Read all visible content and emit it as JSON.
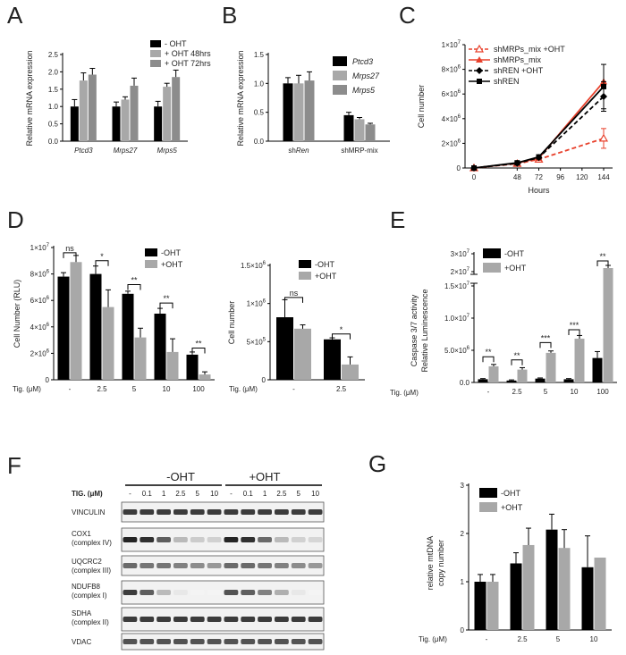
{
  "panels": {
    "A": "A",
    "B": "B",
    "C": "C",
    "D": "D",
    "E": "E",
    "F": "F",
    "G": "G"
  },
  "colors": {
    "black": "#000000",
    "gray_dark": "#8c8c8c",
    "gray_mid": "#a8a8a8",
    "gray_light": "#c4c4c4",
    "red": "#e8412c"
  },
  "chart_data": [
    {
      "id": "A",
      "type": "bar",
      "ylabel": "Relative mRNA expression",
      "ylim": [
        0,
        2.5
      ],
      "yticks": [
        "0.0",
        "0.5",
        "1.0",
        "1.5",
        "2.0",
        "2.5"
      ],
      "categories": [
        "Ptcd3",
        "Mrps27",
        "Mrps5"
      ],
      "categories_italic": true,
      "series": [
        {
          "name": "- OHT",
          "values": [
            1.0,
            1.0,
            1.0
          ],
          "errors": [
            0.2,
            0.13,
            0.15
          ],
          "color": "#000000"
        },
        {
          "name": "+ OHT 48hrs",
          "values": [
            1.75,
            1.2,
            1.57
          ],
          "errors": [
            0.22,
            0.08,
            0.1
          ],
          "color": "#a8a8a8"
        },
        {
          "name": "+ OHT 72hrs",
          "values": [
            1.92,
            1.6,
            1.85
          ],
          "errors": [
            0.18,
            0.22,
            0.2
          ],
          "color": "#8c8c8c"
        }
      ],
      "legend": "top-right"
    },
    {
      "id": "B",
      "type": "bar",
      "ylabel": "Relative mRNA expression",
      "ylim": [
        0,
        1.5
      ],
      "yticks": [
        "0.0",
        "0.5",
        "1.0",
        "1.5"
      ],
      "categories": [
        "shRen",
        "shMRP-mix"
      ],
      "category_parts": [
        [
          "sh",
          "Ren"
        ],
        [
          "shMRP-mix",
          ""
        ]
      ],
      "series": [
        {
          "name": "Ptcd3",
          "values": [
            1.0,
            0.45
          ],
          "errors": [
            0.1,
            0.05
          ],
          "color": "#000000"
        },
        {
          "name": "Mrps27",
          "values": [
            1.0,
            0.38
          ],
          "errors": [
            0.14,
            0.03
          ],
          "color": "#a8a8a8"
        },
        {
          "name": "Mrps5",
          "values": [
            1.05,
            0.29
          ],
          "errors": [
            0.15,
            0.02
          ],
          "color": "#8c8c8c"
        }
      ],
      "legend": "top-right"
    },
    {
      "id": "C",
      "type": "line",
      "xlabel": "Hours",
      "ylabel": "Cell number",
      "x": [
        0,
        48,
        72,
        96,
        120,
        144
      ],
      "xticks": [
        "0",
        "48",
        "72",
        "96",
        "120",
        "144"
      ],
      "ylim": [
        0,
        10000000
      ],
      "yticks": [
        "0",
        "2×10",
        "4×10",
        "6×10",
        "8×10",
        "1×10"
      ],
      "ytick_exp": [
        "",
        "6",
        "6",
        "6",
        "6",
        "7"
      ],
      "series": [
        {
          "name": "shMRPs_mix +OHT",
          "x": [
            0,
            48,
            72,
            144
          ],
          "values": [
            0,
            350000,
            700000,
            2400000
          ],
          "errors": [
            0,
            0,
            0,
            800000
          ],
          "color": "#e8412c",
          "dashed": true,
          "marker": "triangle-open"
        },
        {
          "name": "shMRPs_mix",
          "x": [
            0,
            48,
            72,
            144
          ],
          "values": [
            0,
            400000,
            800000,
            7000000
          ],
          "errors": [
            0,
            0,
            0,
            0
          ],
          "color": "#e8412c",
          "dashed": false,
          "marker": "triangle"
        },
        {
          "name": "shREN +OHT",
          "x": [
            0,
            48,
            72,
            144
          ],
          "values": [
            0,
            380000,
            850000,
            5800000
          ],
          "errors": [
            0,
            0,
            0,
            1200000
          ],
          "color": "#000000",
          "dashed": true,
          "marker": "diamond"
        },
        {
          "name": "shREN",
          "x": [
            0,
            48,
            72,
            144
          ],
          "values": [
            0,
            420000,
            900000,
            6600000
          ],
          "errors": [
            0,
            0,
            0,
            1800000
          ],
          "color": "#000000",
          "dashed": false,
          "marker": "square"
        }
      ],
      "legend": "top-left"
    },
    {
      "id": "D1",
      "type": "bar",
      "ylabel": "Cell Number (RLU)",
      "xlabel": "Tig. (μM)",
      "ylim": [
        0,
        10000000
      ],
      "yticks": [
        "0",
        "2×10",
        "4×10",
        "6×10",
        "8×10",
        "1×10"
      ],
      "ytick_exp": [
        "",
        "6",
        "6",
        "6",
        "6",
        "7"
      ],
      "categories": [
        "-",
        "2.5",
        "5",
        "10",
        "100"
      ],
      "series": [
        {
          "name": "-OHT",
          "values": [
            7800000,
            8000000,
            6500000,
            5000000,
            1900000
          ],
          "errors": [
            300000,
            600000,
            200000,
            400000,
            200000
          ],
          "color": "#000000"
        },
        {
          "name": "+OHT",
          "values": [
            8900000,
            5500000,
            3200000,
            2100000,
            400000
          ],
          "errors": [
            500000,
            1300000,
            700000,
            1000000,
            200000
          ],
          "color": "#a8a8a8"
        }
      ],
      "significance": [
        "ns",
        "*",
        "**",
        "**",
        "**"
      ],
      "legend": "top-right"
    },
    {
      "id": "D2",
      "type": "bar",
      "ylabel": "Cell number",
      "xlabel": "Tig. (μM)",
      "ylim": [
        0,
        1500000
      ],
      "yticks": [
        "0",
        "5×10",
        "1×10",
        "1.5×10"
      ],
      "ytick_exp": [
        "",
        "5",
        "6",
        "6"
      ],
      "categories": [
        "-",
        "2.5"
      ],
      "series": [
        {
          "name": "-OHT",
          "values": [
            820000,
            530000
          ],
          "errors": [
            230000,
            20000
          ],
          "color": "#000000"
        },
        {
          "name": "+OHT",
          "values": [
            670000,
            200000
          ],
          "errors": [
            50000,
            100000
          ],
          "color": "#a8a8a8"
        }
      ],
      "significance": [
        "ns",
        "*"
      ],
      "legend": "top-right"
    },
    {
      "id": "E",
      "type": "bar",
      "ylabel": "Caspase 3/7 activity",
      "ylabel2": "Relative Luminescence",
      "xlabel": "Tig. (μM)",
      "ylim": [
        0,
        30000000
      ],
      "axis_break": [
        15000000,
        20000000
      ],
      "yticks": [
        "0.0",
        "5.0×10",
        "1.0×10",
        "1.5×10",
        "2×10",
        "3×10"
      ],
      "ytick_exp": [
        "",
        "6",
        "7",
        "7",
        "7",
        "7"
      ],
      "categories": [
        "-",
        "2.5",
        "5",
        "10",
        "100"
      ],
      "series": [
        {
          "name": "-OHT",
          "values": [
            500000,
            300000,
            600000,
            500000,
            3800000
          ],
          "errors": [
            100000,
            100000,
            100000,
            100000,
            1000000
          ],
          "color": "#000000"
        },
        {
          "name": "+OHT",
          "values": [
            2500000,
            2000000,
            4600000,
            6800000,
            22000000
          ],
          "errors": [
            300000,
            300000,
            300000,
            500000,
            1500000
          ],
          "color": "#a8a8a8"
        }
      ],
      "significance": [
        "**",
        "**",
        "***",
        "***",
        "**"
      ],
      "legend": "top-left"
    },
    {
      "id": "G",
      "type": "bar",
      "ylabel": "relative mtDNA",
      "ylabel2": "copy number",
      "xlabel": "Tig. (μM)",
      "ylim": [
        0,
        3
      ],
      "yticks": [
        "0",
        "1",
        "2",
        "3"
      ],
      "categories": [
        "-",
        "2.5",
        "5",
        "10"
      ],
      "series": [
        {
          "name": "-OHT",
          "values": [
            1.0,
            1.38,
            2.08,
            1.3
          ],
          "errors": [
            0.15,
            0.22,
            0.32,
            0.65
          ],
          "color": "#000000"
        },
        {
          "name": "+OHT",
          "values": [
            1.0,
            1.76,
            1.7,
            1.5
          ],
          "errors": [
            0.15,
            0.35,
            0.38,
            0.0
          ],
          "color": "#a8a8a8"
        }
      ],
      "legend": "top-left"
    }
  ],
  "western_blot": {
    "headers": [
      "-OHT",
      "+OHT"
    ],
    "tig_label": "TIG. (μM)",
    "concentrations": [
      "-",
      "0.1",
      "1",
      "2.5",
      "5",
      "10",
      "-",
      "0.1",
      "1",
      "2.5",
      "5",
      "10"
    ],
    "rows": [
      {
        "label": [
          "VINCULIN"
        ],
        "intensity": [
          0.85,
          0.85,
          0.85,
          0.85,
          0.85,
          0.85,
          0.85,
          0.85,
          0.85,
          0.85,
          0.85,
          0.85
        ]
      },
      {
        "label": [
          "COX1",
          "(complex IV)"
        ],
        "intensity": [
          0.95,
          0.9,
          0.7,
          0.3,
          0.22,
          0.2,
          0.95,
          0.9,
          0.65,
          0.3,
          0.2,
          0.18
        ]
      },
      {
        "label": [
          "UQCRC2",
          "(complex III)"
        ],
        "intensity": [
          0.65,
          0.6,
          0.6,
          0.55,
          0.5,
          0.45,
          0.65,
          0.65,
          0.6,
          0.55,
          0.5,
          0.45
        ]
      },
      {
        "label": [
          "NDUFB8",
          "(complex I)"
        ],
        "intensity": [
          0.85,
          0.7,
          0.3,
          0.1,
          0.05,
          0.05,
          0.75,
          0.7,
          0.55,
          0.35,
          0.1,
          0.05
        ]
      },
      {
        "label": [
          "SDHA",
          "(complex II)"
        ],
        "intensity": [
          0.85,
          0.85,
          0.85,
          0.85,
          0.85,
          0.85,
          0.85,
          0.85,
          0.85,
          0.85,
          0.85,
          0.85
        ]
      },
      {
        "label": [
          "VDAC"
        ],
        "intensity": [
          0.75,
          0.75,
          0.75,
          0.75,
          0.75,
          0.75,
          0.75,
          0.75,
          0.75,
          0.75,
          0.75,
          0.75
        ]
      }
    ]
  }
}
